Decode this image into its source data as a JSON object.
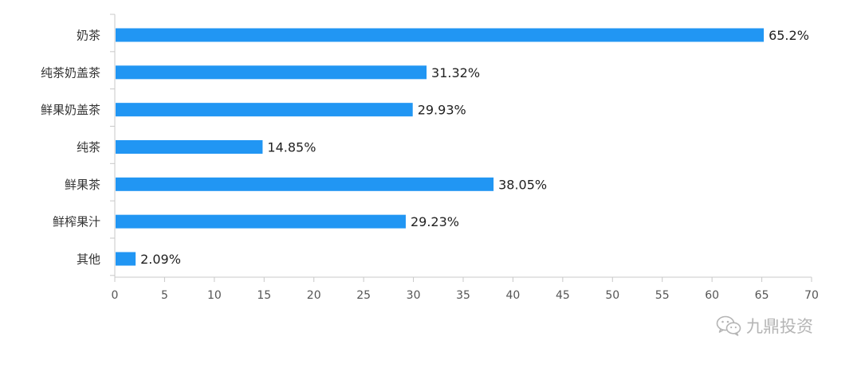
{
  "chart_data": {
    "type": "bar",
    "orientation": "horizontal",
    "categories": [
      "奶茶",
      "纯茶奶盖茶",
      "鲜果奶盖茶",
      "纯茶",
      "鲜果茶",
      "鲜榨果汁",
      "其他"
    ],
    "values": [
      65.2,
      31.32,
      29.93,
      14.85,
      38.05,
      29.23,
      2.09
    ],
    "data_labels": [
      "65.2%",
      "31.32%",
      "29.93%",
      "14.85%",
      "38.05%",
      "29.23%",
      "2.09%"
    ],
    "xlim": [
      0,
      70
    ],
    "xticks": [
      0,
      5,
      10,
      15,
      20,
      25,
      30,
      35,
      40,
      45,
      50,
      55,
      60,
      65,
      70
    ],
    "grid": false,
    "bar_color": "#2196f3",
    "axis_color": "#c8c8c8"
  },
  "watermark": {
    "text": "九鼎投资",
    "icon": "wechat-icon",
    "color": "#b5b5b5"
  }
}
